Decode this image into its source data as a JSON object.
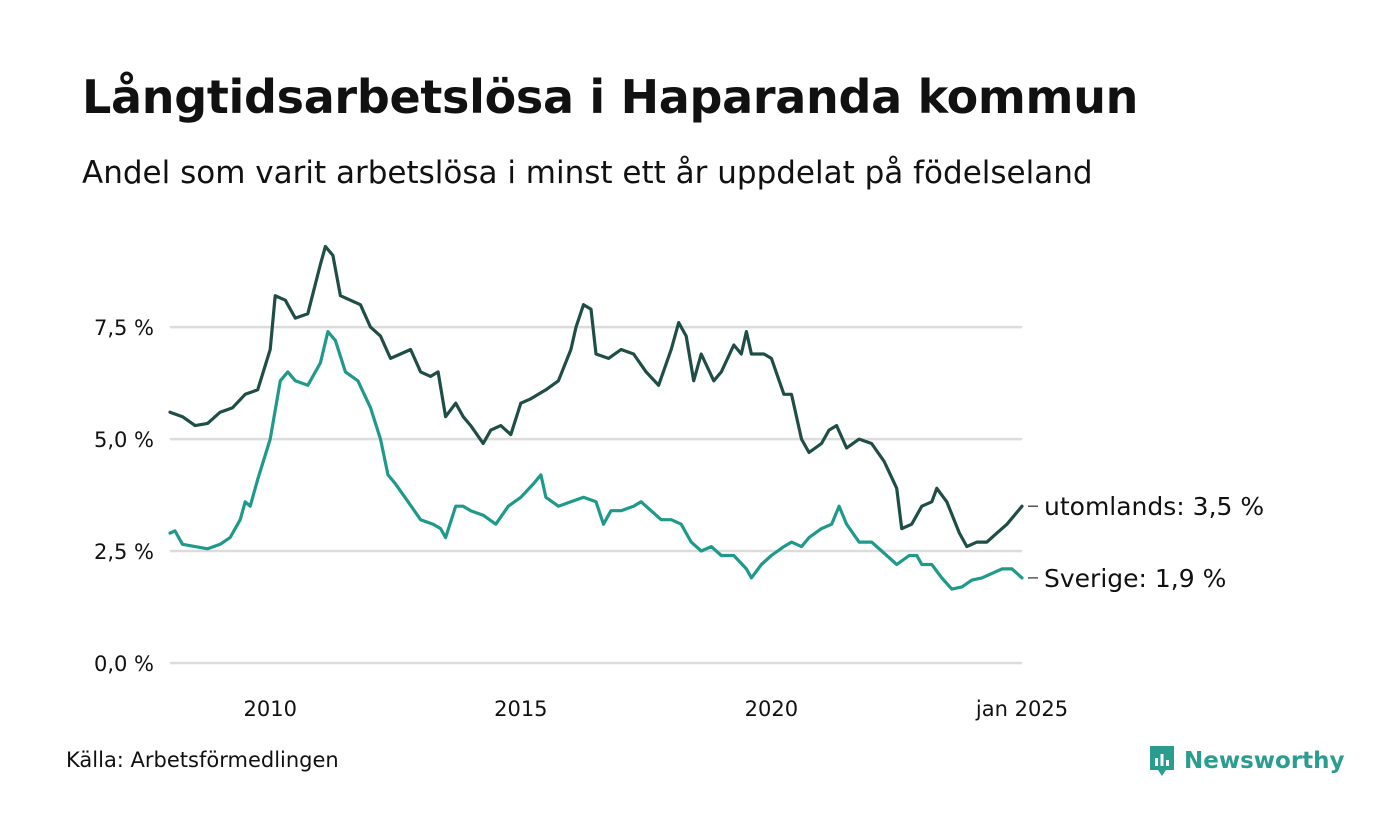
{
  "header": {
    "title": "Långtidsarbetslösa i Haparanda kommun",
    "subtitle": "Andel som varit arbetslösa i minst ett år uppdelat på födelseland"
  },
  "footer": {
    "source": "Källa: Arbetsförmedlingen",
    "brand": "Newsworthy"
  },
  "colors": {
    "utomlands": "#1f4e47",
    "sverige": "#1f9a8a",
    "grid": "#dcdcdc",
    "brand": "#2a9d8f"
  },
  "chart_data": {
    "type": "line",
    "x_ticks": [
      {
        "x": 2010,
        "label": "2010"
      },
      {
        "x": 2015,
        "label": "2015"
      },
      {
        "x": 2020,
        "label": "2020"
      },
      {
        "x": 2025,
        "label": "jan 2025"
      }
    ],
    "y_ticks": [
      {
        "y": 0,
        "label": "0,0 %"
      },
      {
        "y": 2.5,
        "label": "2,5 %"
      },
      {
        "y": 5,
        "label": "5,0 %"
      },
      {
        "y": 7.5,
        "label": "7,5 %"
      }
    ],
    "xlim": [
      2008.0,
      2025.0
    ],
    "ylim": [
      0,
      9.4
    ],
    "grid": true,
    "series": [
      {
        "name": "utomlands",
        "end_label": "utomlands: 3,5 %",
        "points": [
          [
            2008.0,
            5.6
          ],
          [
            2008.25,
            5.5
          ],
          [
            2008.5,
            5.3
          ],
          [
            2008.75,
            5.35
          ],
          [
            2009.0,
            5.6
          ],
          [
            2009.25,
            5.7
          ],
          [
            2009.5,
            6.0
          ],
          [
            2009.75,
            6.1
          ],
          [
            2010.0,
            7.0
          ],
          [
            2010.1,
            8.2
          ],
          [
            2010.3,
            8.1
          ],
          [
            2010.5,
            7.7
          ],
          [
            2010.75,
            7.8
          ],
          [
            2011.0,
            8.9
          ],
          [
            2011.1,
            9.3
          ],
          [
            2011.25,
            9.1
          ],
          [
            2011.4,
            8.2
          ],
          [
            2011.6,
            8.1
          ],
          [
            2011.8,
            8.0
          ],
          [
            2012.0,
            7.5
          ],
          [
            2012.2,
            7.3
          ],
          [
            2012.4,
            6.8
          ],
          [
            2012.6,
            6.9
          ],
          [
            2012.8,
            7.0
          ],
          [
            2013.0,
            6.5
          ],
          [
            2013.2,
            6.4
          ],
          [
            2013.35,
            6.5
          ],
          [
            2013.5,
            5.5
          ],
          [
            2013.7,
            5.8
          ],
          [
            2013.85,
            5.5
          ],
          [
            2014.0,
            5.3
          ],
          [
            2014.25,
            4.9
          ],
          [
            2014.4,
            5.2
          ],
          [
            2014.6,
            5.3
          ],
          [
            2014.8,
            5.1
          ],
          [
            2015.0,
            5.8
          ],
          [
            2015.2,
            5.9
          ],
          [
            2015.5,
            6.1
          ],
          [
            2015.75,
            6.3
          ],
          [
            2016.0,
            7.0
          ],
          [
            2016.1,
            7.5
          ],
          [
            2016.25,
            8.0
          ],
          [
            2016.4,
            7.9
          ],
          [
            2016.5,
            6.9
          ],
          [
            2016.75,
            6.8
          ],
          [
            2017.0,
            7.0
          ],
          [
            2017.25,
            6.9
          ],
          [
            2017.5,
            6.5
          ],
          [
            2017.75,
            6.2
          ],
          [
            2018.0,
            7.0
          ],
          [
            2018.15,
            7.6
          ],
          [
            2018.3,
            7.3
          ],
          [
            2018.45,
            6.3
          ],
          [
            2018.6,
            6.9
          ],
          [
            2018.85,
            6.3
          ],
          [
            2019.0,
            6.5
          ],
          [
            2019.25,
            7.1
          ],
          [
            2019.4,
            6.9
          ],
          [
            2019.5,
            7.4
          ],
          [
            2019.6,
            6.9
          ],
          [
            2019.85,
            6.9
          ],
          [
            2020.0,
            6.8
          ],
          [
            2020.25,
            6.0
          ],
          [
            2020.4,
            6.0
          ],
          [
            2020.6,
            5.0
          ],
          [
            2020.75,
            4.7
          ],
          [
            2021.0,
            4.9
          ],
          [
            2021.15,
            5.2
          ],
          [
            2021.3,
            5.3
          ],
          [
            2021.5,
            4.8
          ],
          [
            2021.75,
            5.0
          ],
          [
            2022.0,
            4.9
          ],
          [
            2022.25,
            4.5
          ],
          [
            2022.5,
            3.9
          ],
          [
            2022.6,
            3.0
          ],
          [
            2022.8,
            3.1
          ],
          [
            2023.0,
            3.5
          ],
          [
            2023.2,
            3.6
          ],
          [
            2023.3,
            3.9
          ],
          [
            2023.5,
            3.6
          ],
          [
            2023.75,
            2.9
          ],
          [
            2023.9,
            2.6
          ],
          [
            2024.1,
            2.7
          ],
          [
            2024.3,
            2.7
          ],
          [
            2024.5,
            2.9
          ],
          [
            2024.7,
            3.1
          ],
          [
            2024.85,
            3.3
          ],
          [
            2025.0,
            3.5
          ]
        ]
      },
      {
        "name": "Sverige",
        "end_label": "Sverige: 1,9 %",
        "points": [
          [
            2008.0,
            2.9
          ],
          [
            2008.1,
            2.95
          ],
          [
            2008.25,
            2.65
          ],
          [
            2008.5,
            2.6
          ],
          [
            2008.75,
            2.55
          ],
          [
            2009.0,
            2.65
          ],
          [
            2009.2,
            2.8
          ],
          [
            2009.4,
            3.2
          ],
          [
            2009.5,
            3.6
          ],
          [
            2009.6,
            3.5
          ],
          [
            2009.75,
            4.1
          ],
          [
            2010.0,
            5.0
          ],
          [
            2010.2,
            6.3
          ],
          [
            2010.35,
            6.5
          ],
          [
            2010.5,
            6.3
          ],
          [
            2010.75,
            6.2
          ],
          [
            2011.0,
            6.7
          ],
          [
            2011.15,
            7.4
          ],
          [
            2011.3,
            7.2
          ],
          [
            2011.5,
            6.5
          ],
          [
            2011.75,
            6.3
          ],
          [
            2012.0,
            5.7
          ],
          [
            2012.2,
            5.0
          ],
          [
            2012.35,
            4.2
          ],
          [
            2012.5,
            4.0
          ],
          [
            2012.75,
            3.6
          ],
          [
            2013.0,
            3.2
          ],
          [
            2013.25,
            3.1
          ],
          [
            2013.4,
            3.0
          ],
          [
            2013.5,
            2.8
          ],
          [
            2013.7,
            3.5
          ],
          [
            2013.85,
            3.5
          ],
          [
            2014.0,
            3.4
          ],
          [
            2014.25,
            3.3
          ],
          [
            2014.5,
            3.1
          ],
          [
            2014.75,
            3.5
          ],
          [
            2015.0,
            3.7
          ],
          [
            2015.25,
            4.0
          ],
          [
            2015.4,
            4.2
          ],
          [
            2015.5,
            3.7
          ],
          [
            2015.75,
            3.5
          ],
          [
            2016.0,
            3.6
          ],
          [
            2016.25,
            3.7
          ],
          [
            2016.5,
            3.6
          ],
          [
            2016.65,
            3.1
          ],
          [
            2016.8,
            3.4
          ],
          [
            2017.0,
            3.4
          ],
          [
            2017.25,
            3.5
          ],
          [
            2017.4,
            3.6
          ],
          [
            2017.6,
            3.4
          ],
          [
            2017.8,
            3.2
          ],
          [
            2018.0,
            3.2
          ],
          [
            2018.2,
            3.1
          ],
          [
            2018.4,
            2.7
          ],
          [
            2018.6,
            2.5
          ],
          [
            2018.8,
            2.6
          ],
          [
            2019.0,
            2.4
          ],
          [
            2019.25,
            2.4
          ],
          [
            2019.5,
            2.1
          ],
          [
            2019.6,
            1.9
          ],
          [
            2019.8,
            2.2
          ],
          [
            2020.0,
            2.4
          ],
          [
            2020.25,
            2.6
          ],
          [
            2020.4,
            2.7
          ],
          [
            2020.6,
            2.6
          ],
          [
            2020.75,
            2.8
          ],
          [
            2021.0,
            3.0
          ],
          [
            2021.2,
            3.1
          ],
          [
            2021.35,
            3.5
          ],
          [
            2021.5,
            3.1
          ],
          [
            2021.75,
            2.7
          ],
          [
            2022.0,
            2.7
          ],
          [
            2022.2,
            2.5
          ],
          [
            2022.5,
            2.2
          ],
          [
            2022.75,
            2.4
          ],
          [
            2022.9,
            2.4
          ],
          [
            2023.0,
            2.2
          ],
          [
            2023.2,
            2.2
          ],
          [
            2023.4,
            1.9
          ],
          [
            2023.6,
            1.65
          ],
          [
            2023.8,
            1.7
          ],
          [
            2024.0,
            1.85
          ],
          [
            2024.2,
            1.9
          ],
          [
            2024.4,
            2.0
          ],
          [
            2024.6,
            2.1
          ],
          [
            2024.8,
            2.1
          ],
          [
            2025.0,
            1.9
          ]
        ]
      }
    ]
  }
}
